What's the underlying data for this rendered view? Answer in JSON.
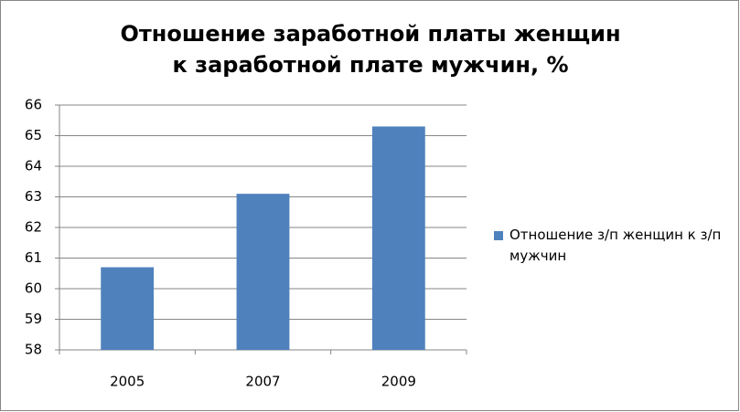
{
  "chart_data": {
    "type": "bar",
    "title": "Отношение заработной платы женщин к заработной плате мужчин, %",
    "categories": [
      "2005",
      "2007",
      "2009"
    ],
    "series": [
      {
        "name": "Отношение з/п женщин к з/п мужчин",
        "color": "#4f81bd",
        "values": [
          60.7,
          63.1,
          65.3
        ]
      }
    ],
    "ylim": [
      58,
      66
    ],
    "yticks": [
      58,
      59,
      60,
      61,
      62,
      63,
      64,
      65,
      66
    ],
    "grid": true,
    "legend": "right"
  }
}
